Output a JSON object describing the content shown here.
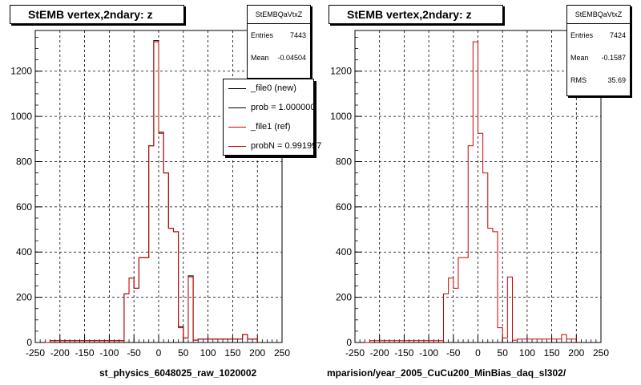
{
  "footer_text": "",
  "chart_data": [
    {
      "type": "histogram",
      "title": "StEMB  vertex,2ndary: z",
      "xlabel": "st_physics_6048025_raw_1020002",
      "ylabel": "",
      "xlim": [
        -250,
        250
      ],
      "ylim": [
        0,
        1380
      ],
      "x_ticks": [
        -250,
        -200,
        -150,
        -100,
        -50,
        0,
        50,
        100,
        150,
        200,
        250
      ],
      "y_ticks": [
        0,
        200,
        400,
        600,
        800,
        1000,
        1200
      ],
      "grid": true,
      "bin_edges": [
        -230,
        -220,
        -210,
        -200,
        -190,
        -180,
        -170,
        -160,
        -150,
        -140,
        -130,
        -120,
        -110,
        -100,
        -90,
        -80,
        -70,
        -60,
        -50,
        -40,
        -30,
        -20,
        -10,
        0,
        10,
        20,
        30,
        40,
        50,
        60,
        70,
        80,
        90,
        100,
        110,
        120,
        130,
        140,
        150,
        160,
        170,
        180,
        190,
        200
      ],
      "series": [
        {
          "name": "_file0 (new)",
          "color": "#000000",
          "values": [
            0,
            8,
            8,
            8,
            8,
            8,
            8,
            8,
            8,
            8,
            8,
            8,
            8,
            8,
            8,
            8,
            215,
            285,
            240,
            375,
            375,
            870,
            1335,
            930,
            750,
            505,
            490,
            70,
            20,
            295,
            10,
            15,
            15,
            15,
            15,
            15,
            15,
            15,
            15,
            15,
            35,
            15,
            15
          ]
        },
        {
          "name": "_file1 (ref)",
          "color": "#cc0000",
          "values": [
            0,
            8,
            8,
            8,
            8,
            8,
            8,
            8,
            8,
            8,
            8,
            8,
            8,
            8,
            8,
            8,
            215,
            285,
            240,
            375,
            375,
            870,
            1330,
            925,
            750,
            505,
            490,
            65,
            20,
            290,
            10,
            15,
            15,
            15,
            15,
            15,
            15,
            15,
            15,
            15,
            35,
            15,
            15
          ]
        }
      ],
      "stats": {
        "name": "StEMBQaVtxZ",
        "entries": "7443",
        "mean": "-0.04504"
      },
      "legend": {
        "position": "top-right",
        "entries": [
          "_file0 (new)",
          "prob = 1.000000",
          "_file1 (ref)",
          "probN = 0.991997"
        ]
      }
    },
    {
      "type": "histogram",
      "title": "StEMB  vertex,2ndary: z",
      "xlabel": "mparision/year_2005_CuCu200_MinBias_daq_sl302/",
      "ylabel": "",
      "xlim": [
        -250,
        250
      ],
      "ylim": [
        0,
        1380
      ],
      "x_ticks": [
        -250,
        -200,
        -150,
        -100,
        -50,
        0,
        50,
        100,
        150,
        200,
        250
      ],
      "y_ticks": [
        0,
        200,
        400,
        600,
        800,
        1000,
        1200
      ],
      "grid": true,
      "bin_edges": [
        -230,
        -220,
        -210,
        -200,
        -190,
        -180,
        -170,
        -160,
        -150,
        -140,
        -130,
        -120,
        -110,
        -100,
        -90,
        -80,
        -70,
        -60,
        -50,
        -40,
        -30,
        -20,
        -10,
        0,
        10,
        20,
        30,
        40,
        50,
        60,
        70,
        80,
        90,
        100,
        110,
        120,
        130,
        140,
        150,
        160,
        170,
        180,
        190,
        200
      ],
      "series": [
        {
          "name": "_file1 (ref)",
          "color": "#cc0000",
          "values": [
            0,
            8,
            8,
            8,
            8,
            8,
            8,
            8,
            8,
            8,
            8,
            8,
            8,
            8,
            8,
            8,
            215,
            285,
            240,
            375,
            375,
            870,
            1330,
            925,
            750,
            505,
            490,
            65,
            20,
            290,
            10,
            15,
            15,
            15,
            15,
            15,
            15,
            15,
            15,
            15,
            35,
            15,
            15
          ]
        }
      ],
      "stats": {
        "name": "StEMBQaVtxZ",
        "entries": "7424",
        "mean": "-0.1587",
        "rms": "35.69"
      }
    }
  ],
  "labels": {
    "entries": "Entries",
    "mean": "Mean",
    "rms": "RMS"
  }
}
